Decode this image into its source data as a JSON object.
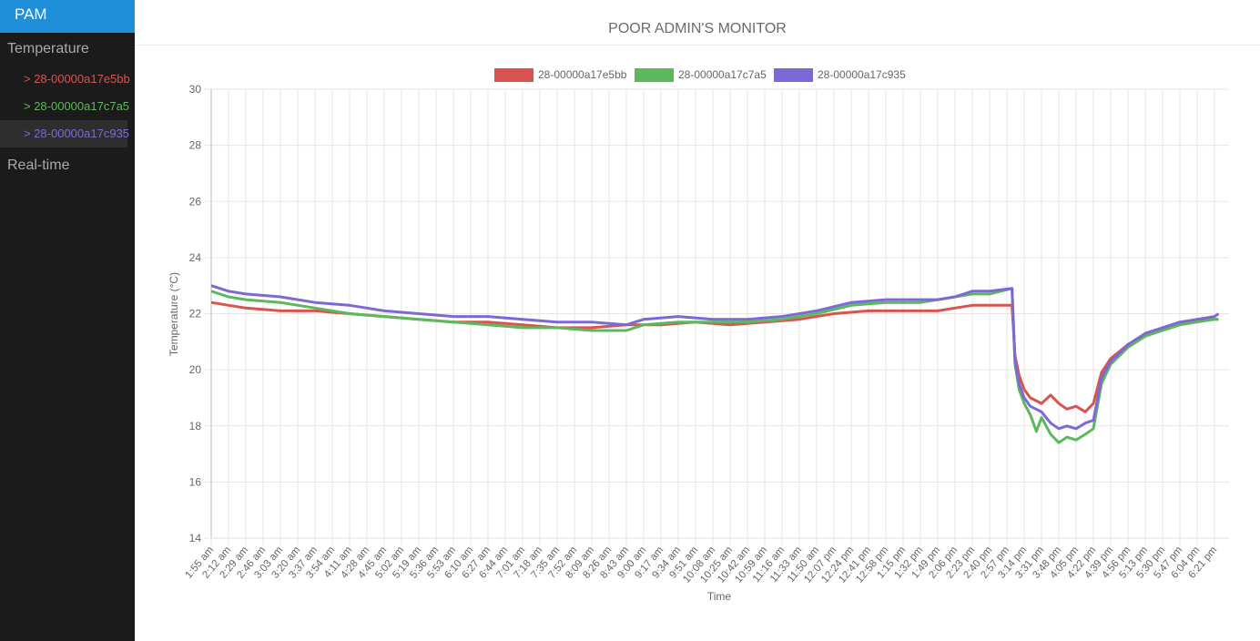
{
  "app": {
    "brand": "PAM",
    "nav": {
      "temperature_label": "Temperature",
      "realtime_label": "Real-time",
      "sensors": [
        {
          "label": "> 28-00000a17e5bb",
          "color": "#d9534f"
        },
        {
          "label": "> 28-00000a17c7a5",
          "color": "#5cb85c"
        },
        {
          "label": "> 28-00000a17c935",
          "color": "#7b6ad6"
        }
      ]
    },
    "header_title": "POOR ADMIN'S MONITOR"
  },
  "chart_data": {
    "type": "line",
    "xlabel": "Time",
    "ylabel": "Temperature (°C)",
    "ylim": [
      14,
      30
    ],
    "yticks": [
      14,
      16,
      18,
      20,
      22,
      24,
      26,
      28,
      30
    ],
    "grid": true,
    "legend": "top-center",
    "x_ticks": [
      "1:55 am",
      "2:12 am",
      "2:29 am",
      "2:46 am",
      "3:03 am",
      "3:20 am",
      "3:37 am",
      "3:54 am",
      "4:11 am",
      "4:28 am",
      "4:45 am",
      "5:02 am",
      "5:19 am",
      "5:36 am",
      "5:53 am",
      "6:10 am",
      "6:27 am",
      "6:44 am",
      "7:01 am",
      "7:18 am",
      "7:35 am",
      "7:52 am",
      "8:09 am",
      "8:26 am",
      "8:43 am",
      "9:00 am",
      "9:17 am",
      "9:34 am",
      "9:51 am",
      "10:08 am",
      "10:25 am",
      "10:42 am",
      "10:59 am",
      "11:16 am",
      "11:33 am",
      "11:50 am",
      "12:07 pm",
      "12:24 pm",
      "12:41 pm",
      "12:58 pm",
      "1:15 pm",
      "1:32 pm",
      "1:49 pm",
      "2:06 pm",
      "2:23 pm",
      "2:40 pm",
      "2:57 pm",
      "3:14 pm",
      "3:31 pm",
      "3:48 pm",
      "4:05 pm",
      "4:22 pm",
      "4:39 pm",
      "4:56 pm",
      "5:13 pm",
      "5:30 pm",
      "5:47 pm",
      "6:04 pm",
      "6:21 pm"
    ],
    "series": [
      {
        "name": "28-00000a17e5bb",
        "color": "#d9534f",
        "points": [
          [
            "1:55 am",
            22.4
          ],
          [
            "2:12 am",
            22.3
          ],
          [
            "2:29 am",
            22.2
          ],
          [
            "3:03 am",
            22.1
          ],
          [
            "3:37 am",
            22.1
          ],
          [
            "4:11 am",
            22.0
          ],
          [
            "4:45 am",
            21.9
          ],
          [
            "5:19 am",
            21.8
          ],
          [
            "5:53 am",
            21.7
          ],
          [
            "6:27 am",
            21.7
          ],
          [
            "7:01 am",
            21.6
          ],
          [
            "7:35 am",
            21.5
          ],
          [
            "8:09 am",
            21.5
          ],
          [
            "8:43 am",
            21.6
          ],
          [
            "9:17 am",
            21.6
          ],
          [
            "9:51 am",
            21.7
          ],
          [
            "10:25 am",
            21.6
          ],
          [
            "10:59 am",
            21.7
          ],
          [
            "11:33 am",
            21.8
          ],
          [
            "12:07 pm",
            22.0
          ],
          [
            "12:41 pm",
            22.1
          ],
          [
            "1:15 pm",
            22.1
          ],
          [
            "1:49 pm",
            22.1
          ],
          [
            "2:06 pm",
            22.2
          ],
          [
            "2:23 pm",
            22.3
          ],
          [
            "2:40 pm",
            22.3
          ],
          [
            "3:02 pm",
            22.3
          ],
          [
            "3:05 pm",
            20.5
          ],
          [
            "3:09 pm",
            19.8
          ],
          [
            "3:14 pm",
            19.3
          ],
          [
            "3:20 pm",
            19.0
          ],
          [
            "3:31 pm",
            18.8
          ],
          [
            "3:40 pm",
            19.1
          ],
          [
            "3:48 pm",
            18.8
          ],
          [
            "3:56 pm",
            18.6
          ],
          [
            "4:05 pm",
            18.7
          ],
          [
            "4:14 pm",
            18.5
          ],
          [
            "4:22 pm",
            18.8
          ],
          [
            "4:30 pm",
            19.9
          ],
          [
            "4:39 pm",
            20.4
          ],
          [
            "4:56 pm",
            20.9
          ],
          [
            "5:13 pm",
            21.2
          ],
          [
            "5:30 pm",
            21.5
          ],
          [
            "5:47 pm",
            21.6
          ],
          [
            "6:04 pm",
            21.8
          ],
          [
            "6:21 pm",
            21.8
          ],
          [
            "6:25 pm",
            21.8
          ]
        ]
      },
      {
        "name": "28-00000a17c7a5",
        "color": "#5cb85c",
        "points": [
          [
            "1:55 am",
            22.8
          ],
          [
            "2:12 am",
            22.6
          ],
          [
            "2:29 am",
            22.5
          ],
          [
            "3:03 am",
            22.4
          ],
          [
            "3:37 am",
            22.2
          ],
          [
            "4:11 am",
            22.0
          ],
          [
            "4:45 am",
            21.9
          ],
          [
            "5:19 am",
            21.8
          ],
          [
            "5:53 am",
            21.7
          ],
          [
            "6:27 am",
            21.6
          ],
          [
            "7:01 am",
            21.5
          ],
          [
            "7:35 am",
            21.5
          ],
          [
            "8:09 am",
            21.4
          ],
          [
            "8:43 am",
            21.4
          ],
          [
            "9:00 am",
            21.6
          ],
          [
            "9:34 am",
            21.7
          ],
          [
            "10:08 am",
            21.7
          ],
          [
            "10:42 am",
            21.7
          ],
          [
            "11:16 am",
            21.8
          ],
          [
            "11:50 am",
            22.0
          ],
          [
            "12:24 pm",
            22.3
          ],
          [
            "12:58 pm",
            22.4
          ],
          [
            "1:32 pm",
            22.4
          ],
          [
            "1:49 pm",
            22.5
          ],
          [
            "2:06 pm",
            22.6
          ],
          [
            "2:23 pm",
            22.7
          ],
          [
            "2:40 pm",
            22.7
          ],
          [
            "3:02 pm",
            22.9
          ],
          [
            "3:05 pm",
            20.2
          ],
          [
            "3:09 pm",
            19.3
          ],
          [
            "3:14 pm",
            18.8
          ],
          [
            "3:20 pm",
            18.4
          ],
          [
            "3:26 pm",
            17.8
          ],
          [
            "3:31 pm",
            18.3
          ],
          [
            "3:40 pm",
            17.7
          ],
          [
            "3:48 pm",
            17.4
          ],
          [
            "3:56 pm",
            17.6
          ],
          [
            "4:05 pm",
            17.5
          ],
          [
            "4:14 pm",
            17.7
          ],
          [
            "4:22 pm",
            17.9
          ],
          [
            "4:30 pm",
            19.5
          ],
          [
            "4:39 pm",
            20.2
          ],
          [
            "4:56 pm",
            20.8
          ],
          [
            "5:13 pm",
            21.2
          ],
          [
            "5:30 pm",
            21.4
          ],
          [
            "5:47 pm",
            21.6
          ],
          [
            "6:04 pm",
            21.7
          ],
          [
            "6:21 pm",
            21.8
          ],
          [
            "6:25 pm",
            21.8
          ]
        ]
      },
      {
        "name": "28-00000a17c935",
        "color": "#7b6ad6",
        "points": [
          [
            "1:55 am",
            23.0
          ],
          [
            "2:12 am",
            22.8
          ],
          [
            "2:29 am",
            22.7
          ],
          [
            "3:03 am",
            22.6
          ],
          [
            "3:37 am",
            22.4
          ],
          [
            "4:11 am",
            22.3
          ],
          [
            "4:45 am",
            22.1
          ],
          [
            "5:19 am",
            22.0
          ],
          [
            "5:53 am",
            21.9
          ],
          [
            "6:27 am",
            21.9
          ],
          [
            "7:01 am",
            21.8
          ],
          [
            "7:35 am",
            21.7
          ],
          [
            "8:09 am",
            21.7
          ],
          [
            "8:43 am",
            21.6
          ],
          [
            "9:00 am",
            21.8
          ],
          [
            "9:34 am",
            21.9
          ],
          [
            "10:08 am",
            21.8
          ],
          [
            "10:42 am",
            21.8
          ],
          [
            "11:16 am",
            21.9
          ],
          [
            "11:50 am",
            22.1
          ],
          [
            "12:24 pm",
            22.4
          ],
          [
            "12:58 pm",
            22.5
          ],
          [
            "1:32 pm",
            22.5
          ],
          [
            "1:49 pm",
            22.5
          ],
          [
            "2:06 pm",
            22.6
          ],
          [
            "2:23 pm",
            22.8
          ],
          [
            "2:40 pm",
            22.8
          ],
          [
            "3:02 pm",
            22.9
          ],
          [
            "3:05 pm",
            20.3
          ],
          [
            "3:09 pm",
            19.5
          ],
          [
            "3:14 pm",
            19.0
          ],
          [
            "3:20 pm",
            18.7
          ],
          [
            "3:31 pm",
            18.5
          ],
          [
            "3:40 pm",
            18.1
          ],
          [
            "3:48 pm",
            17.9
          ],
          [
            "3:56 pm",
            18.0
          ],
          [
            "4:05 pm",
            17.9
          ],
          [
            "4:14 pm",
            18.1
          ],
          [
            "4:22 pm",
            18.2
          ],
          [
            "4:30 pm",
            19.7
          ],
          [
            "4:39 pm",
            20.3
          ],
          [
            "4:56 pm",
            20.9
          ],
          [
            "5:13 pm",
            21.3
          ],
          [
            "5:30 pm",
            21.5
          ],
          [
            "5:47 pm",
            21.7
          ],
          [
            "6:04 pm",
            21.8
          ],
          [
            "6:21 pm",
            21.9
          ],
          [
            "6:25 pm",
            22.0
          ]
        ]
      }
    ]
  }
}
